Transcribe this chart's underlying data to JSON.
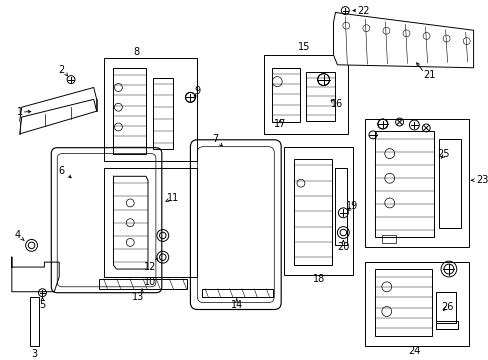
{
  "bg_color": "#ffffff",
  "line_color": "#000000",
  "fig_w": 4.89,
  "fig_h": 3.6,
  "dpi": 100
}
